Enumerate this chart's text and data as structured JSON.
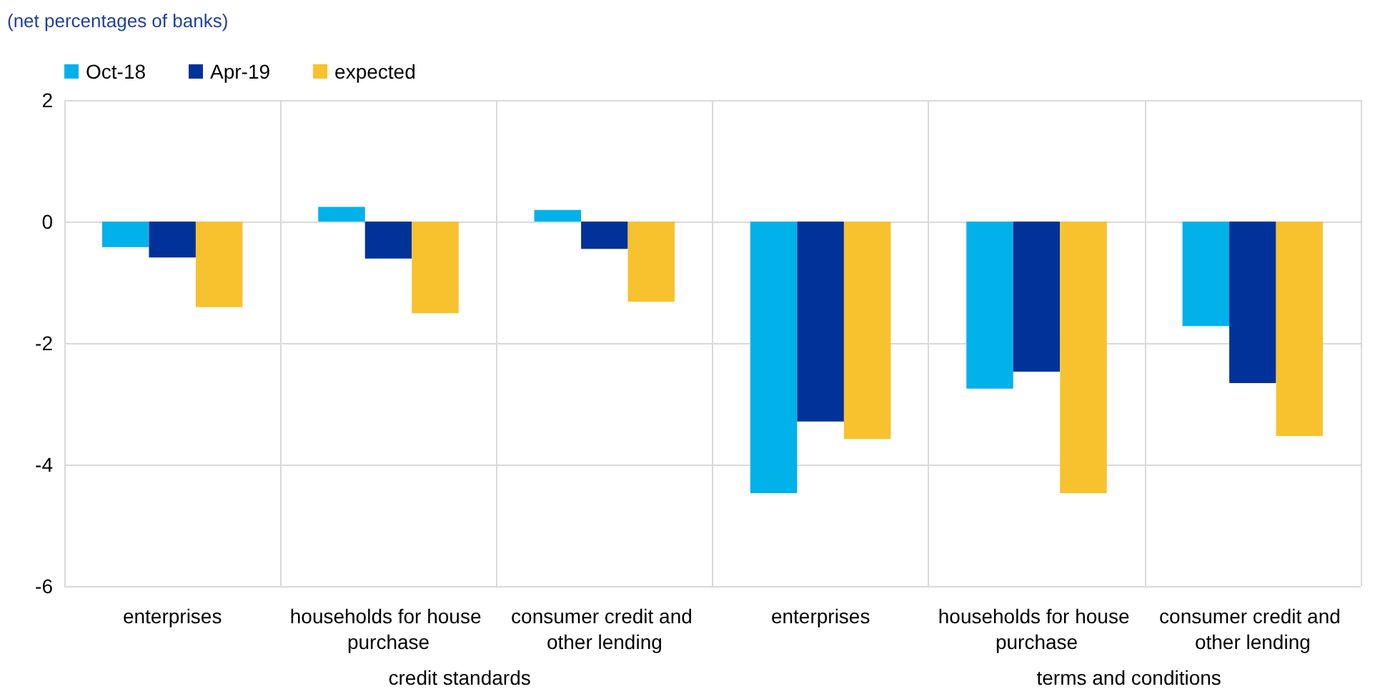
{
  "chart_data": {
    "type": "bar",
    "subtitle": "(net percentages of banks)",
    "categories": [
      "enterprises",
      "households for house purchase",
      "consumer credit and other lending",
      "enterprises",
      "households for house purchase",
      "consumer credit and other lending"
    ],
    "series": [
      {
        "name": "Oct-18",
        "color": "#00b1ea",
        "values": [
          -0.42,
          0.24,
          0.19,
          -4.47,
          -2.75,
          -1.72
        ]
      },
      {
        "name": "Apr-19",
        "color": "#003299",
        "values": [
          -0.59,
          -0.61,
          -0.45,
          -3.29,
          -2.47,
          -2.66
        ]
      },
      {
        "name": "expected",
        "color": "#f8c22e",
        "values": [
          -1.41,
          -1.51,
          -1.32,
          -3.58,
          -4.47,
          -3.53
        ]
      }
    ],
    "annotations": [
      "credit standards",
      "terms and conditions"
    ],
    "ylim": [
      -6,
      2
    ],
    "yticks": [
      -6,
      -4,
      -2,
      0,
      2
    ],
    "grid": true,
    "legend": "top left"
  }
}
